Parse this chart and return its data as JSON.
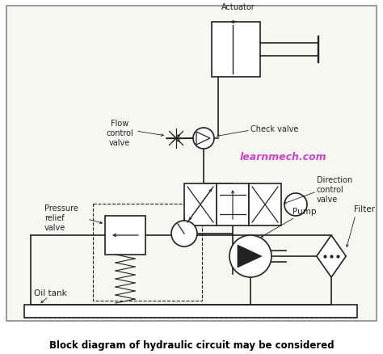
{
  "title": "Block diagram of hydraulic circuit may be considered",
  "watermark": "learnmech.com",
  "watermark_color": "#cc44cc",
  "lc": "#222222",
  "lw": 1.2,
  "figsize": [
    4.74,
    4.39
  ],
  "dpi": 100,
  "labels": {
    "actuator": "Actuator",
    "flow_control": "Flow\ncontrol\nvalve",
    "check_valve": "Check valve",
    "dcv": "Direction\ncontrol\nvalve",
    "prv": "Pressure\nrelief\nvalve",
    "pump": "Pump",
    "filter": "Filter",
    "oil_tank": "Oil tank"
  }
}
